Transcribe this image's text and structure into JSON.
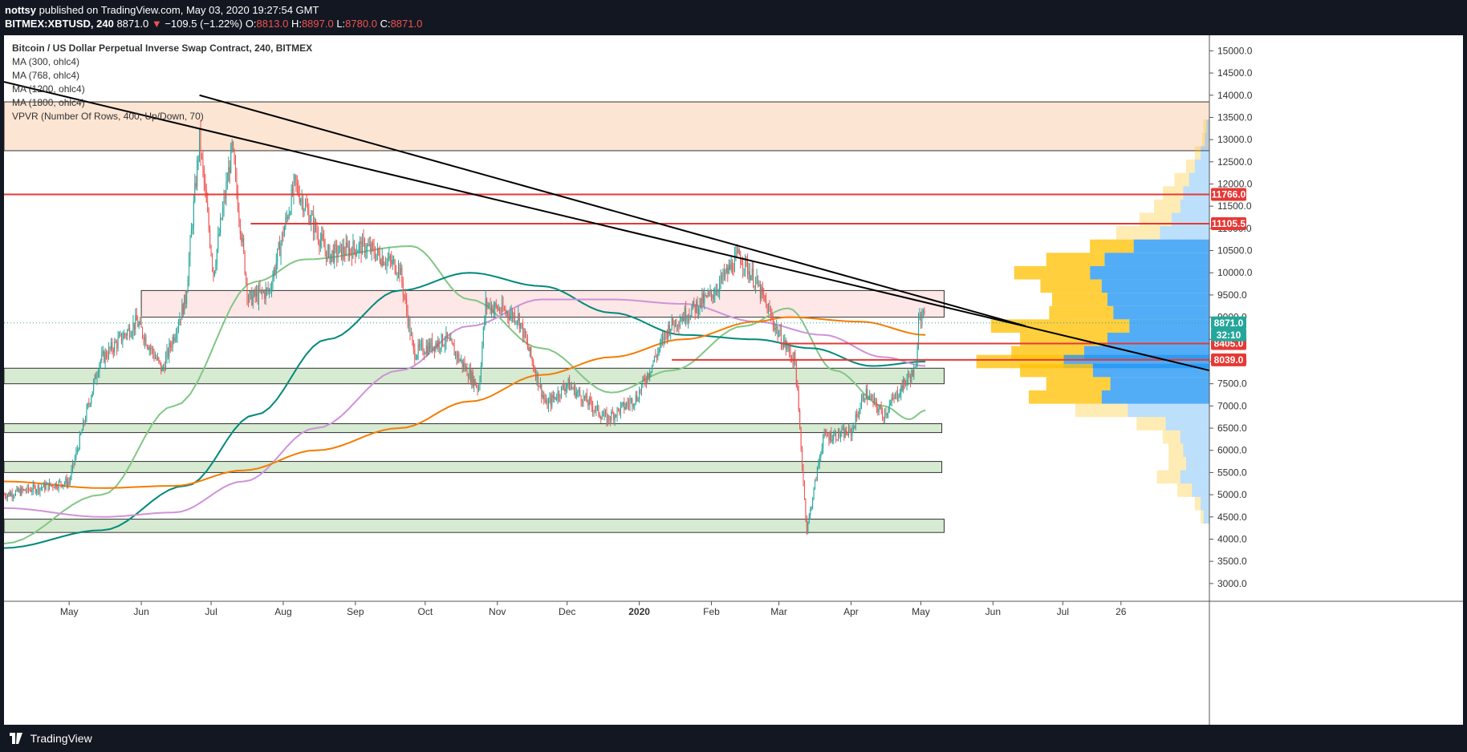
{
  "header": {
    "publisher": "nottsy",
    "published_text": "published on TradingView.com, May 03, 2020 19:27:54 GMT",
    "symbol": "BITMEX:XBTUSD, 240",
    "last": "8871.0",
    "change": "−109.5 (−1.22%)",
    "open_label": "O:",
    "open": "8813.0",
    "high_label": "H:",
    "high": "8897.0",
    "low_label": "L:",
    "low": "8780.0",
    "close_label": "C:",
    "close": "8871.0"
  },
  "legend": {
    "title": "Bitcoin / US Dollar Perpetual Inverse Swap Contract, 240, BITMEX",
    "indicators": [
      "MA (300, ohlc4)",
      "MA (768, ohlc4)",
      "MA (1200, ohlc4)",
      "MA (1800, ohlc4)",
      "VPVR (Number Of Rows, 400, Up/Down, 70)"
    ]
  },
  "footer": {
    "brand": "TradingView"
  },
  "colors": {
    "up": "#26a69a",
    "down": "#ef5350",
    "ma300": "#81c784",
    "ma768": "#00897b",
    "ma1200": "#ce93d8",
    "ma1800": "#f57c00",
    "resistance": "#e53935",
    "trend": "#000000",
    "vp_up": "#2196f3",
    "vp_down": "#ffc107"
  },
  "chart_data": {
    "type": "candlestick",
    "title": "Bitcoin / US Dollar Perpetual Inverse Swap Contract, 240, BITMEX",
    "symbol": "XBTUSD",
    "timeframe": "240",
    "x_labels": [
      "May",
      "Jun",
      "Jul",
      "Aug",
      "Sep",
      "Oct",
      "Nov",
      "Dec",
      "2020",
      "Feb",
      "Mar",
      "Apr",
      "May",
      "Jun",
      "Jul",
      "26"
    ],
    "x_dates": [
      "2019-05-01",
      "2019-06-01",
      "2019-07-01",
      "2019-08-01",
      "2019-09-01",
      "2019-10-01",
      "2019-11-01",
      "2019-12-01",
      "2020-01-01",
      "2020-02-01",
      "2020-03-01",
      "2020-04-01",
      "2020-05-01",
      "2020-06-01",
      "2020-07-01",
      "2020-07-26"
    ],
    "xlim": [
      "2019-04-03",
      "2020-09-02"
    ],
    "ylim": [
      2600,
      15350
    ],
    "y_ticks": [
      "15000.0",
      "14500.0",
      "14000.0",
      "13500.0",
      "13000.0",
      "12500.0",
      "12000.0",
      "11500.0",
      "11000.0",
      "10500.0",
      "10000.0",
      "9500.0",
      "9000.0",
      "8500.0",
      "8000.0",
      "7500.0",
      "7000.0",
      "6500.0",
      "6000.0",
      "5500.0",
      "5000.0",
      "4500.0",
      "4000.0",
      "3500.0",
      "3000.0"
    ],
    "price_path": [
      [
        "2019-04-03",
        5000
      ],
      [
        "2019-05-01",
        5300
      ],
      [
        "2019-05-14",
        8000
      ],
      [
        "2019-05-30",
        8900
      ],
      [
        "2019-06-10",
        7800
      ],
      [
        "2019-06-20",
        9400
      ],
      [
        "2019-06-26",
        13000
      ],
      [
        "2019-07-02",
        10000
      ],
      [
        "2019-07-10",
        12800
      ],
      [
        "2019-07-17",
        9400
      ],
      [
        "2019-07-26",
        9600
      ],
      [
        "2019-08-06",
        12000
      ],
      [
        "2019-08-20",
        10400
      ],
      [
        "2019-09-05",
        10600
      ],
      [
        "2019-09-20",
        10100
      ],
      [
        "2019-09-26",
        8200
      ],
      [
        "2019-10-10",
        8500
      ],
      [
        "2019-10-24",
        7400
      ],
      [
        "2019-10-27",
        9300
      ],
      [
        "2019-11-10",
        9000
      ],
      [
        "2019-11-22",
        7000
      ],
      [
        "2019-12-01",
        7500
      ],
      [
        "2019-12-18",
        6700
      ],
      [
        "2019-12-31",
        7200
      ],
      [
        "2020-01-14",
        8800
      ],
      [
        "2020-02-01",
        9500
      ],
      [
        "2020-02-13",
        10400
      ],
      [
        "2020-02-20",
        9800
      ],
      [
        "2020-03-01",
        8600
      ],
      [
        "2020-03-08",
        8000
      ],
      [
        "2020-03-12",
        4900
      ],
      [
        "2020-03-13",
        4200
      ],
      [
        "2020-03-20",
        6300
      ],
      [
        "2020-04-01",
        6400
      ],
      [
        "2020-04-07",
        7300
      ],
      [
        "2020-04-15",
        6800
      ],
      [
        "2020-04-25",
        7600
      ],
      [
        "2020-04-29",
        7800
      ],
      [
        "2020-04-30",
        9200
      ],
      [
        "2020-05-03",
        8871
      ]
    ],
    "moving_averages": [
      {
        "name": "MA (300, ohlc4)",
        "color": "#81c784",
        "points": [
          [
            "2019-04-03",
            3900
          ],
          [
            "2019-05-15",
            5000
          ],
          [
            "2019-06-15",
            7000
          ],
          [
            "2019-07-20",
            9800
          ],
          [
            "2019-08-10",
            10300
          ],
          [
            "2019-09-25",
            10600
          ],
          [
            "2019-10-20",
            9400
          ],
          [
            "2019-11-20",
            8300
          ],
          [
            "2019-12-20",
            7300
          ],
          [
            "2020-01-15",
            7800
          ],
          [
            "2020-02-15",
            8800
          ],
          [
            "2020-03-05",
            9200
          ],
          [
            "2020-03-25",
            7800
          ],
          [
            "2020-04-15",
            7000
          ],
          [
            "2020-04-26",
            6700
          ],
          [
            "2020-05-03",
            6900
          ]
        ]
      },
      {
        "name": "MA (768, ohlc4)",
        "color": "#00897b",
        "points": [
          [
            "2019-04-03",
            3800
          ],
          [
            "2019-05-15",
            4200
          ],
          [
            "2019-06-20",
            5200
          ],
          [
            "2019-07-20",
            6800
          ],
          [
            "2019-08-20",
            8500
          ],
          [
            "2019-09-20",
            9600
          ],
          [
            "2019-10-20",
            10000
          ],
          [
            "2019-11-20",
            9700
          ],
          [
            "2019-12-20",
            9100
          ],
          [
            "2020-01-20",
            8600
          ],
          [
            "2020-02-20",
            8500
          ],
          [
            "2020-03-15",
            8300
          ],
          [
            "2020-04-10",
            7900
          ],
          [
            "2020-05-03",
            8000
          ]
        ]
      },
      {
        "name": "MA (1200, ohlc4)",
        "color": "#ce93d8",
        "points": [
          [
            "2019-04-03",
            4700
          ],
          [
            "2019-05-15",
            4500
          ],
          [
            "2019-06-15",
            4600
          ],
          [
            "2019-07-15",
            5300
          ],
          [
            "2019-08-15",
            6500
          ],
          [
            "2019-09-20",
            7800
          ],
          [
            "2019-10-20",
            8800
          ],
          [
            "2019-11-20",
            9400
          ],
          [
            "2019-12-20",
            9400
          ],
          [
            "2020-01-20",
            9300
          ],
          [
            "2020-02-20",
            8900
          ],
          [
            "2020-03-20",
            8600
          ],
          [
            "2020-04-15",
            8100
          ],
          [
            "2020-05-03",
            7900
          ]
        ]
      },
      {
        "name": "MA (1800, ohlc4)",
        "color": "#f57c00",
        "points": [
          [
            "2019-04-03",
            5300
          ],
          [
            "2019-05-15",
            5150
          ],
          [
            "2019-06-15",
            5200
          ],
          [
            "2019-07-15",
            5550
          ],
          [
            "2019-08-15",
            6000
          ],
          [
            "2019-09-20",
            6500
          ],
          [
            "2019-10-20",
            7100
          ],
          [
            "2019-11-20",
            7700
          ],
          [
            "2019-12-20",
            8100
          ],
          [
            "2020-01-20",
            8500
          ],
          [
            "2020-02-20",
            8900
          ],
          [
            "2020-03-05",
            9000
          ],
          [
            "2020-04-05",
            8900
          ],
          [
            "2020-05-03",
            8600
          ]
        ]
      }
    ],
    "support_zones": [
      {
        "from": "2019-04-03",
        "to": "2020-05-11",
        "low": 7500,
        "high": 7850,
        "color": "#d7ead2"
      },
      {
        "from": "2019-04-03",
        "to": "2020-05-10",
        "low": 6400,
        "high": 6600,
        "color": "#d7ead2"
      },
      {
        "from": "2019-04-03",
        "to": "2020-05-10",
        "low": 5500,
        "high": 5750,
        "color": "#d7ead2"
      },
      {
        "from": "2019-04-03",
        "to": "2020-05-11",
        "low": 4150,
        "high": 4450,
        "color": "#d7ead2"
      }
    ],
    "resistance_zones": [
      {
        "from": "2019-04-03",
        "to": "2020-09-02",
        "low": 12750,
        "high": 13850,
        "color": "#fde5d3"
      },
      {
        "from": "2019-06-01",
        "to": "2020-05-11",
        "low": 9000,
        "high": 9600,
        "color": "#fde7e7"
      }
    ],
    "horizontal_lines": [
      {
        "price": 11766.0,
        "label": "11766.0",
        "color": "#e53935",
        "from": "2019-04-03"
      },
      {
        "price": 11105.5,
        "label": "11105.5",
        "color": "#e53935",
        "from": "2019-07-18"
      },
      {
        "price": 8405.0,
        "label": "8405.0",
        "color": "#e53935",
        "from": "2020-03-02"
      },
      {
        "price": 8039.0,
        "label": "8039.0",
        "color": "#e53935",
        "from": "2020-01-15"
      }
    ],
    "trendlines": [
      {
        "from": [
          "2019-06-26",
          14000
        ],
        "to": [
          "2020-06-15",
          8800
        ]
      },
      {
        "from": [
          "2019-04-03",
          14300
        ],
        "to": [
          "2020-09-02",
          7800
        ]
      }
    ],
    "price_labels": [
      {
        "price": 8871.0,
        "label": "8871.0",
        "color": "#26a69a"
      },
      {
        "price": 8600.0,
        "label": "32:10",
        "color": "#26a69a"
      }
    ],
    "last_price": 8871.0,
    "volume_profile": {
      "type": "horizontal-volume",
      "up_color": "#2196f3",
      "down_color": "#ffc107",
      "rows": [
        [
          13300,
          0.02,
          0.02
        ],
        [
          13000,
          0.03,
          0.02
        ],
        [
          12700,
          0.06,
          0.04
        ],
        [
          12400,
          0.1,
          0.06
        ],
        [
          12100,
          0.14,
          0.1
        ],
        [
          11800,
          0.18,
          0.14
        ],
        [
          11500,
          0.2,
          0.18
        ],
        [
          11200,
          0.26,
          0.22
        ],
        [
          10900,
          0.34,
          0.3
        ],
        [
          10600,
          0.52,
          0.3
        ],
        [
          10300,
          0.72,
          0.4
        ],
        [
          10000,
          0.82,
          0.52
        ],
        [
          9700,
          0.74,
          0.42
        ],
        [
          9400,
          0.7,
          0.38
        ],
        [
          9100,
          0.66,
          0.44
        ],
        [
          8800,
          0.55,
          0.95
        ],
        [
          8500,
          0.7,
          0.6
        ],
        [
          8200,
          0.86,
          0.5
        ],
        [
          8000,
          1.0,
          0.6
        ],
        [
          7800,
          0.8,
          0.5
        ],
        [
          7500,
          0.68,
          0.44
        ],
        [
          7200,
          0.74,
          0.5
        ],
        [
          6900,
          0.56,
          0.36
        ],
        [
          6600,
          0.3,
          0.2
        ],
        [
          6300,
          0.2,
          0.12
        ],
        [
          6000,
          0.18,
          0.1
        ],
        [
          5700,
          0.16,
          0.12
        ],
        [
          5400,
          0.2,
          0.16
        ],
        [
          5100,
          0.12,
          0.1
        ],
        [
          4800,
          0.06,
          0.04
        ],
        [
          4500,
          0.04,
          0.02
        ]
      ]
    }
  }
}
